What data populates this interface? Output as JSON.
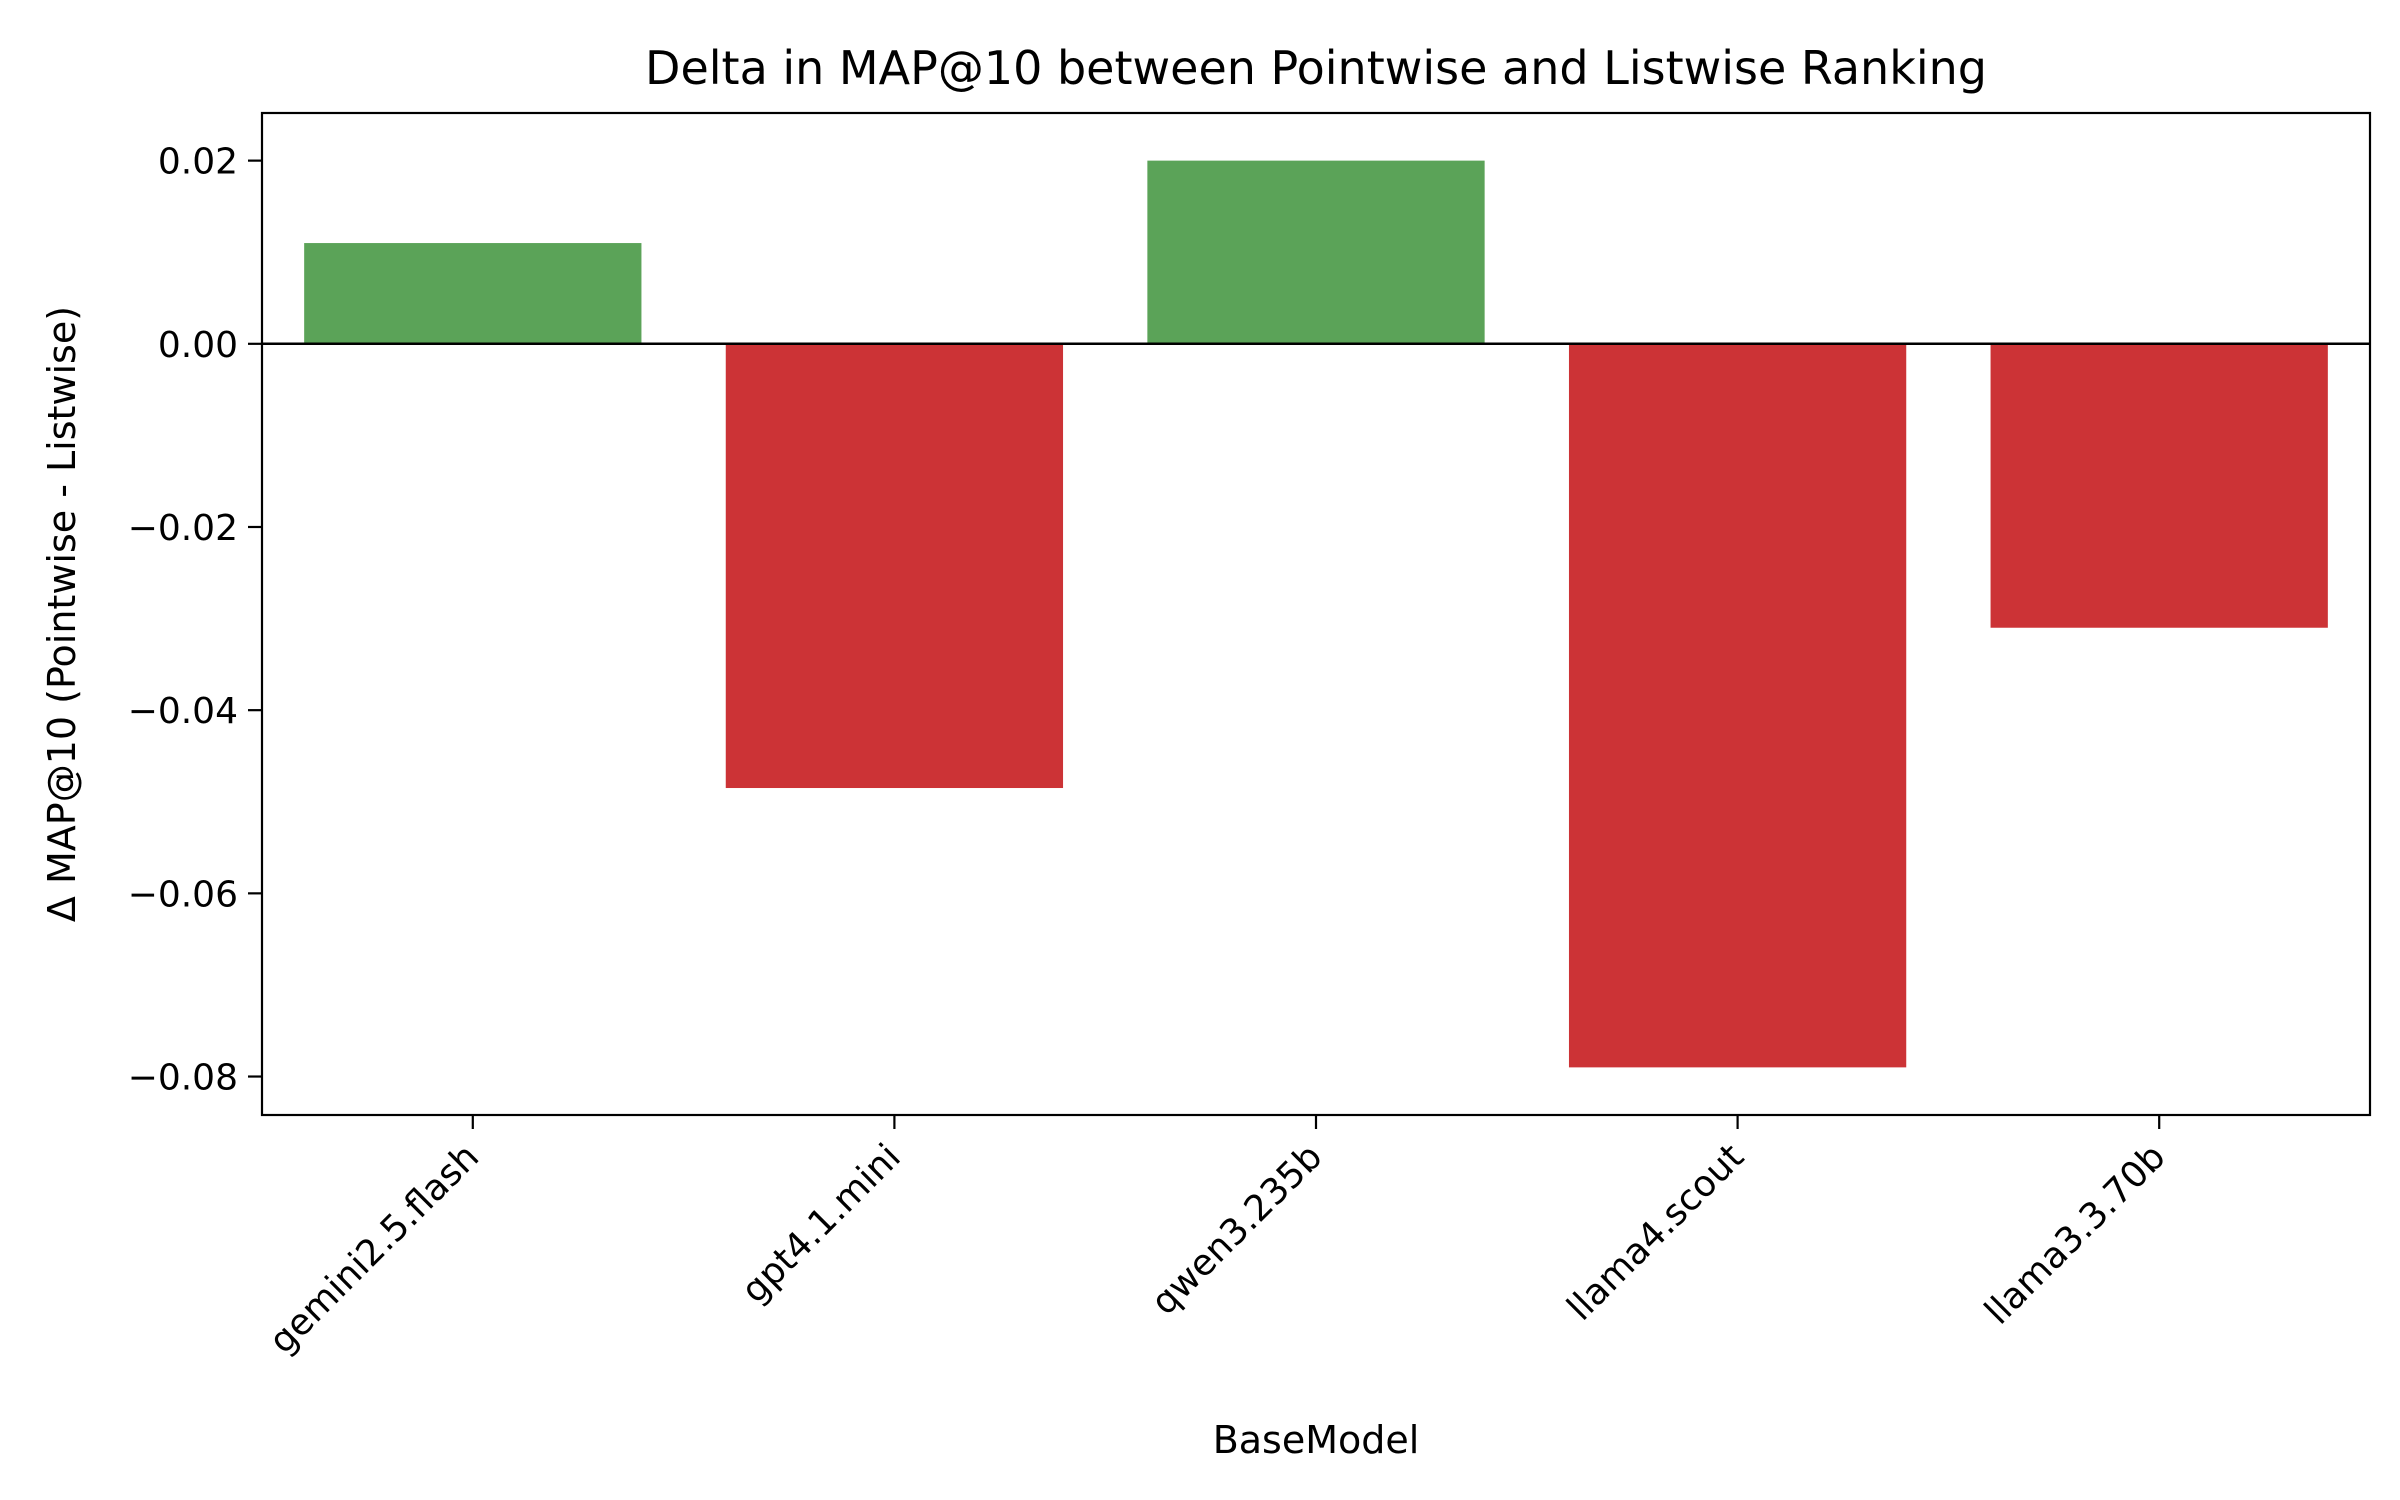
{
  "chart_data": {
    "type": "bar",
    "title": "Delta in MAP@10 between Pointwise and Listwise Ranking",
    "xlabel": "BaseModel",
    "ylabel": "Δ MAP@10 (Pointwise - Listwise)",
    "categories": [
      "gemini2.5.flash",
      "gpt4.1.mini",
      "qwen3.235b",
      "llama4.scout",
      "llama3.3.70b"
    ],
    "values": [
      0.011,
      -0.0485,
      0.02,
      -0.079,
      -0.031
    ],
    "ylim": [
      -0.0842,
      0.0252
    ],
    "yticks": [
      0.02,
      0.0,
      -0.02,
      -0.04,
      -0.06,
      -0.08
    ],
    "ytick_labels": [
      "0.02",
      "0.00",
      "−0.02",
      "−0.04",
      "−0.06",
      "−0.08"
    ],
    "grid": false,
    "legend": "none",
    "zero_line": true,
    "colors": {
      "positive": "#5ba358",
      "negative": "#cc3336",
      "axis": "#000000"
    }
  }
}
